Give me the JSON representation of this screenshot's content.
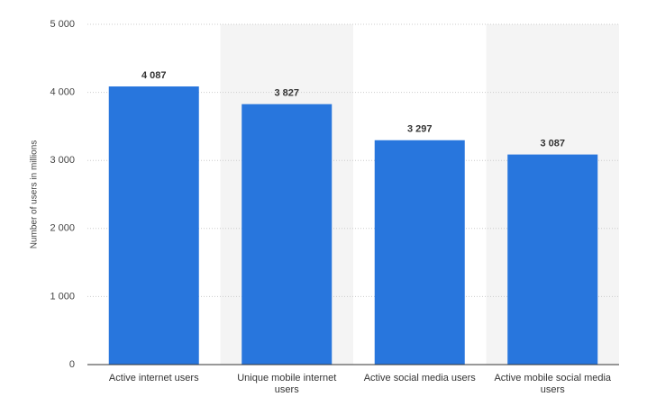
{
  "chart_data": {
    "type": "bar",
    "y_label": "Number of users in millions",
    "categories": [
      "Active internet users",
      "Unique mobile internet users",
      "Active social media users",
      "Active mobile social media users"
    ],
    "values": [
      4087,
      3827,
      3297,
      3087
    ],
    "value_labels": [
      "4 087",
      "3 827",
      "3 297",
      "3 087"
    ],
    "color": "#2876dd",
    "ylim": [
      0,
      5000
    ],
    "yticks": [
      0,
      {
        "value": 1000,
        "label": "1 000"
      },
      {
        "value": 2000,
        "label": "2 000"
      },
      {
        "value": 3000,
        "label": "3 000"
      },
      {
        "value": 4000,
        "label": "4 000"
      },
      {
        "value": 5000,
        "label": "5 000"
      }
    ],
    "grid": true
  }
}
